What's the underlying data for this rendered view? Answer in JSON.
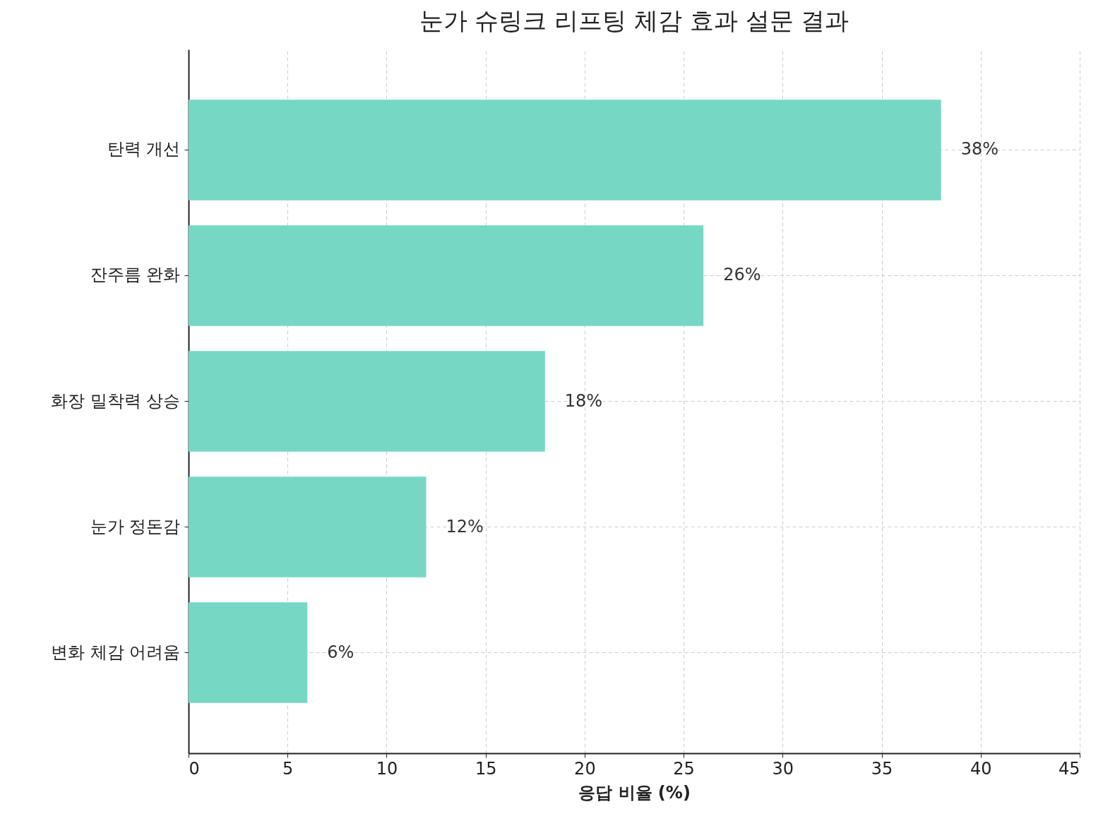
{
  "chart_data": {
    "type": "bar",
    "orientation": "horizontal",
    "title": "눈가 슈링크 리프팅 체감 효과 설문 결과",
    "xlabel": "응답 비율 (%)",
    "categories": [
      "탄력 개선",
      "잔주름 완화",
      "화장 밀착력 상승",
      "눈가 정돈감",
      "변화 체감 어려움"
    ],
    "values": [
      38,
      26,
      18,
      12,
      6
    ],
    "value_labels": [
      "38%",
      "26%",
      "18%",
      "12%",
      "6%"
    ],
    "color": "#76d7c4",
    "xlim": [
      0,
      45
    ],
    "xticks": [
      0,
      5,
      10,
      15,
      20,
      25,
      30,
      35,
      40,
      45
    ],
    "grid": true
  }
}
